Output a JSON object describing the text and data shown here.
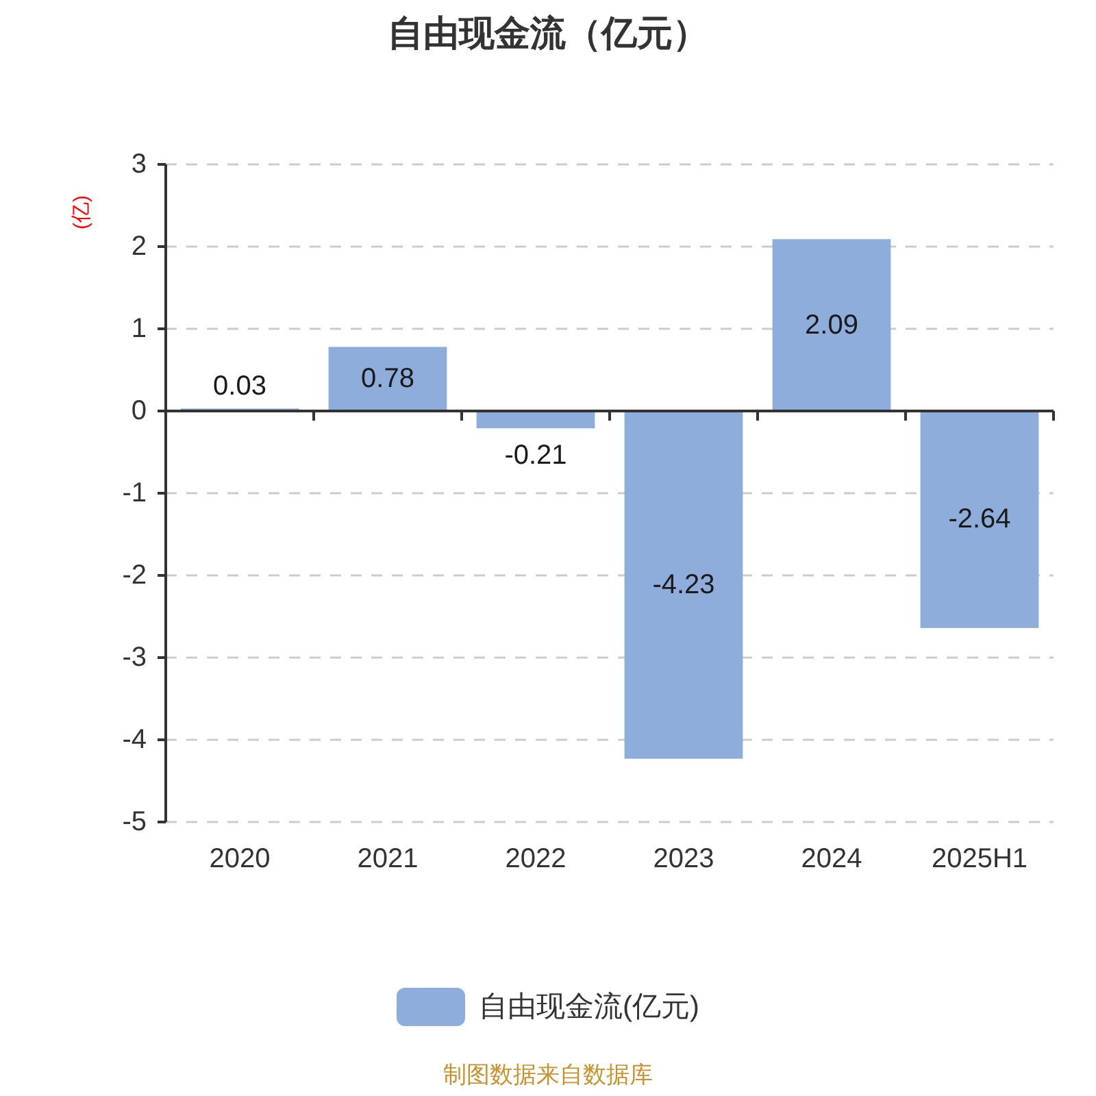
{
  "chart_data": {
    "type": "bar",
    "title": "自由现金流（亿元）",
    "ylabel": "(亿)",
    "categories": [
      "2020",
      "2021",
      "2022",
      "2023",
      "2024",
      "2025H1"
    ],
    "series": [
      {
        "name": "自由现金流(亿元)",
        "color": "#8eaddb",
        "values": [
          0.03,
          0.78,
          -0.21,
          -4.23,
          2.09,
          -2.64
        ]
      }
    ],
    "ylim": [
      -5,
      3
    ],
    "yticks": [
      -5,
      -4,
      -3,
      -2,
      -1,
      0,
      1,
      2,
      3
    ],
    "grid": "y",
    "legend": "bottom",
    "data_labels": true,
    "annotations": [
      "制图数据来自数据库"
    ]
  }
}
